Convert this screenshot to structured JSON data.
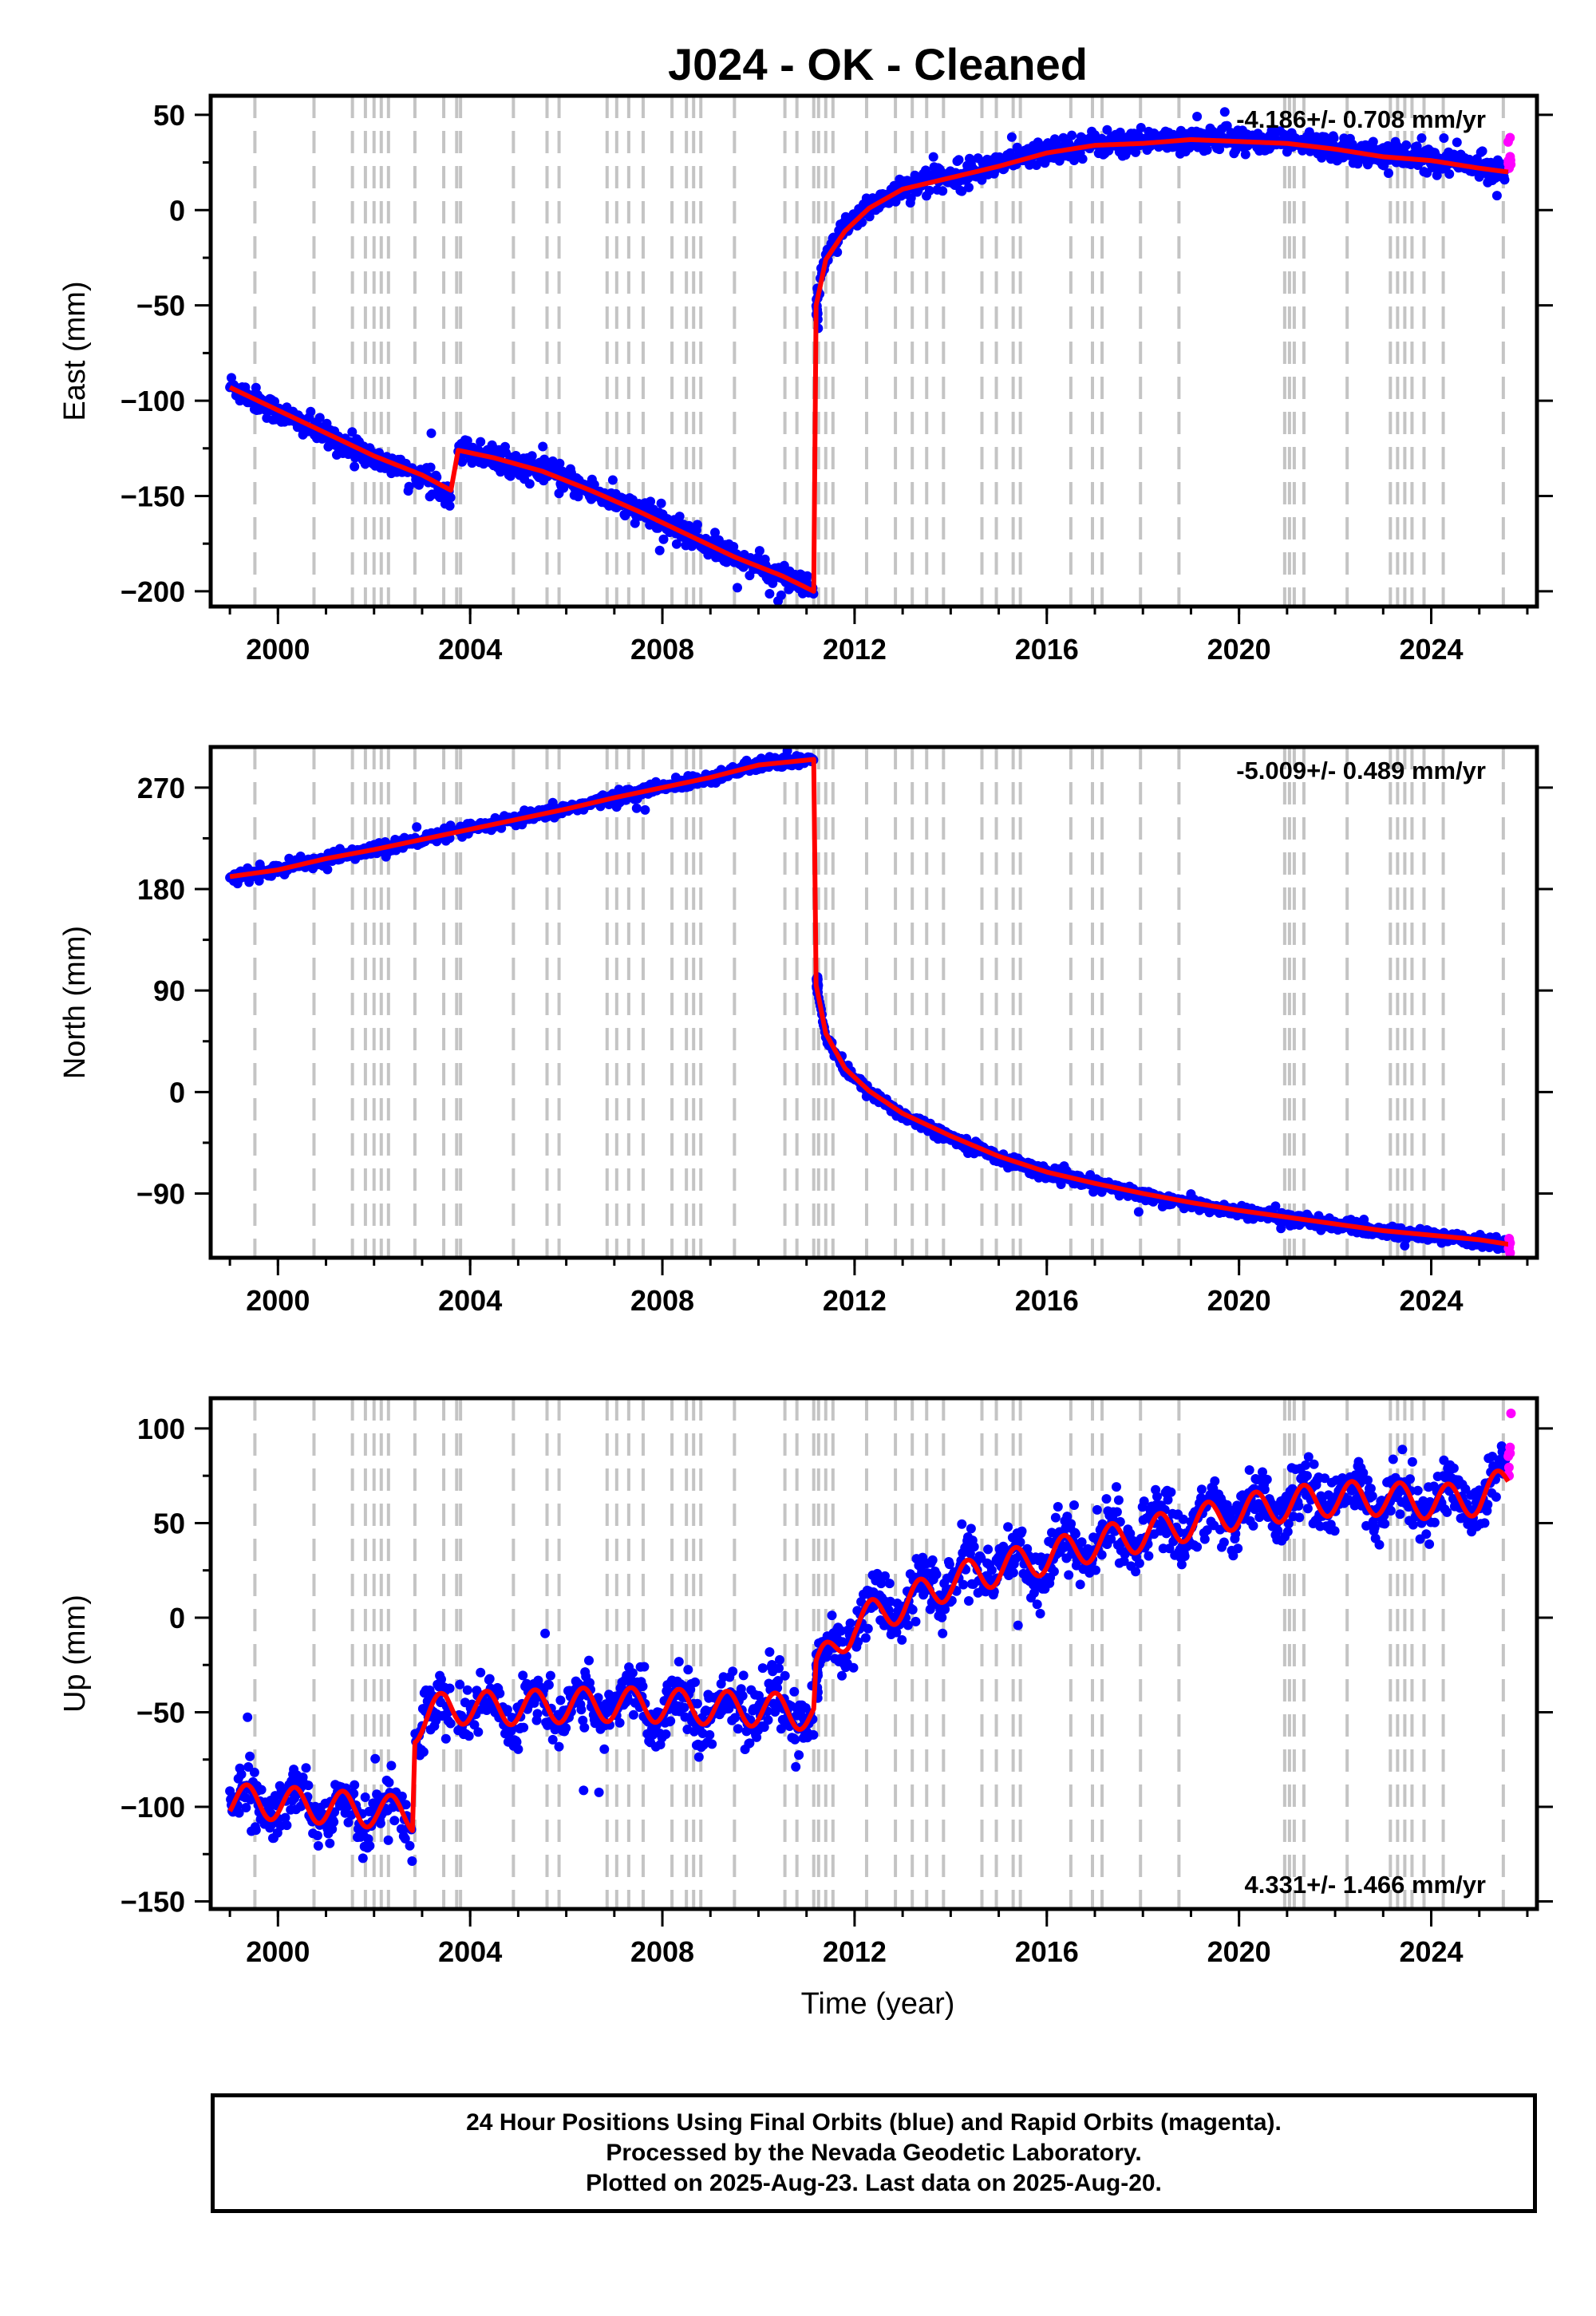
{
  "chart_data": [
    {
      "type": "scatter",
      "title": "J024  - OK - Cleaned",
      "ylabel": "East (mm)",
      "xlabel": "",
      "xlim": [
        1998.6,
        2026.2
      ],
      "ylim": [
        -208,
        60
      ],
      "x_ticks": [
        2000,
        2004,
        2008,
        2012,
        2016,
        2020,
        2024
      ],
      "x_tick_labels": [
        "2000",
        "2004",
        "2008",
        "2012",
        "2016",
        "2020",
        "2024"
      ],
      "y_ticks": [
        50,
        0,
        -50,
        -100,
        -150,
        -200
      ],
      "y_tick_labels": [
        "50",
        "0",
        "−50",
        "−100",
        "−150",
        "−200"
      ],
      "rate_label": "-4.186+/- 0.708 mm/yr",
      "rate_label_position": "top-right",
      "series": [
        {
          "role": "final_orbits",
          "color": "#0000ff",
          "x": [
            1999.0,
            2000.0,
            2001.0,
            2002.0,
            2003.0,
            2003.6,
            2003.75,
            2004.5,
            2005.5,
            2006.5,
            2007.5,
            2008.5,
            2009.5,
            2010.5,
            2011.15,
            2011.2,
            2011.4,
            2011.8,
            2012.3,
            2013.0,
            2014.0,
            2015.0,
            2016.0,
            2017.0,
            2018.0,
            2019.0,
            2020.0,
            2021.0,
            2022.0,
            2023.0,
            2024.0,
            2025.0,
            2025.55
          ],
          "y": [
            -92,
            -106,
            -118,
            -130,
            -140,
            -148,
            -125,
            -130,
            -137,
            -147,
            -158,
            -170,
            -182,
            -192,
            -200,
            -50,
            -25,
            -10,
            2,
            12,
            18,
            24,
            31,
            35,
            36,
            38,
            37,
            36,
            33,
            29,
            27,
            23,
            20
          ]
        },
        {
          "role": "rapid_orbits",
          "color": "#ff00ff",
          "x": [
            2025.62,
            2025.64
          ],
          "y": [
            22,
            38
          ]
        },
        {
          "role": "model_fit",
          "color": "#ff0000",
          "x": [
            1999.0,
            2000.0,
            2001.0,
            2002.0,
            2003.0,
            2003.6,
            2003.75,
            2004.5,
            2005.5,
            2006.5,
            2007.5,
            2008.5,
            2009.5,
            2010.5,
            2011.15,
            2011.2,
            2011.4,
            2011.8,
            2012.3,
            2013.0,
            2014.0,
            2015.0,
            2016.0,
            2017.0,
            2018.0,
            2019.0,
            2020.0,
            2021.0,
            2022.0,
            2023.0,
            2024.0,
            2025.0,
            2025.6
          ],
          "y": [
            -93,
            -105,
            -117,
            -129,
            -139,
            -147,
            -126,
            -130,
            -137,
            -147,
            -158,
            -170,
            -182,
            -192,
            -200,
            -50,
            -26,
            -11,
            1,
            11,
            17,
            23,
            30,
            34,
            35,
            37,
            36,
            35,
            32,
            28,
            26,
            22,
            20
          ]
        }
      ]
    },
    {
      "type": "scatter",
      "title": "",
      "ylabel": "North (mm)",
      "xlabel": "",
      "xlim": [
        1998.6,
        2026.2
      ],
      "ylim": [
        -147,
        306
      ],
      "x_ticks": [
        2000,
        2004,
        2008,
        2012,
        2016,
        2020,
        2024
      ],
      "x_tick_labels": [
        "2000",
        "2004",
        "2008",
        "2012",
        "2016",
        "2020",
        "2024"
      ],
      "y_ticks": [
        270,
        180,
        90,
        0,
        -90
      ],
      "y_tick_labels": [
        "270",
        "180",
        "90",
        "0",
        "−90"
      ],
      "rate_label": "-5.009+/- 0.489 mm/yr",
      "rate_label_position": "top-right",
      "series": [
        {
          "role": "final_orbits",
          "color": "#0000ff",
          "x": [
            1999.0,
            2000.0,
            2001.0,
            2002.0,
            2003.0,
            2004.0,
            2005.0,
            2006.0,
            2007.0,
            2008.0,
            2009.0,
            2010.0,
            2011.15,
            2011.2,
            2011.4,
            2011.8,
            2012.3,
            2013.0,
            2014.0,
            2015.0,
            2016.0,
            2017.0,
            2018.0,
            2019.0,
            2020.0,
            2021.0,
            2022.0,
            2023.0,
            2024.0,
            2025.0,
            2025.55
          ],
          "y": [
            190,
            197,
            207,
            215,
            224,
            233,
            242,
            251,
            261,
            270,
            279,
            290,
            296,
            95,
            50,
            20,
            0,
            -20,
            -40,
            -58,
            -72,
            -82,
            -91,
            -99,
            -106,
            -112,
            -118,
            -124,
            -128,
            -132,
            -136
          ]
        },
        {
          "role": "rapid_orbits",
          "color": "#ff00ff",
          "x": [
            2025.62,
            2025.64
          ],
          "y": [
            -130,
            -143
          ]
        },
        {
          "role": "model_fit",
          "color": "#ff0000",
          "x": [
            1999.0,
            2000.0,
            2001.0,
            2002.0,
            2003.0,
            2004.0,
            2005.0,
            2006.0,
            2007.0,
            2008.0,
            2009.0,
            2010.0,
            2011.15,
            2011.2,
            2011.4,
            2011.8,
            2012.3,
            2013.0,
            2014.0,
            2015.0,
            2016.0,
            2017.0,
            2018.0,
            2019.0,
            2020.0,
            2021.0,
            2022.0,
            2023.0,
            2024.0,
            2025.0,
            2025.6
          ],
          "y": [
            191,
            197,
            207,
            215,
            224,
            233,
            242,
            251,
            261,
            270,
            279,
            290,
            295,
            95,
            52,
            21,
            1,
            -19,
            -39,
            -57,
            -71,
            -81,
            -90,
            -98,
            -105,
            -111,
            -117,
            -123,
            -127,
            -131,
            -135
          ]
        }
      ]
    },
    {
      "type": "scatter",
      "title": "",
      "ylabel": "Up (mm)",
      "xlabel": "Time (year)",
      "xlim": [
        1998.6,
        2026.2
      ],
      "ylim": [
        -154,
        116
      ],
      "x_ticks": [
        2000,
        2004,
        2008,
        2012,
        2016,
        2020,
        2024
      ],
      "x_tick_labels": [
        "2000",
        "2004",
        "2008",
        "2012",
        "2016",
        "2020",
        "2024"
      ],
      "y_ticks": [
        100,
        50,
        0,
        -50,
        -100,
        -150
      ],
      "y_tick_labels": [
        "100",
        "50",
        "0",
        "−50",
        "−100",
        "−150"
      ],
      "rate_label": "4.331+/- 1.466 mm/yr",
      "rate_label_position": "bottom-right",
      "series": [
        {
          "role": "final_orbits",
          "color": "#0000ff",
          "x": [
            1999.0,
            2000.0,
            2001.0,
            2002.0,
            2002.8,
            2002.85,
            2003.5,
            2004.5,
            2005.5,
            2006.5,
            2007.5,
            2008.5,
            2009.5,
            2010.5,
            2011.15,
            2011.2,
            2012.0,
            2013.0,
            2014.0,
            2015.0,
            2016.0,
            2017.0,
            2018.0,
            2019.0,
            2020.0,
            2021.0,
            2022.0,
            2023.0,
            2024.0,
            2025.0,
            2025.55
          ],
          "y": [
            -97,
            -98,
            -100,
            -102,
            -104,
            -57,
            -48,
            -48,
            -47,
            -46,
            -46,
            -47,
            -48,
            -49,
            -51,
            -28,
            -2,
            8,
            20,
            27,
            33,
            40,
            45,
            51,
            57,
            61,
            64,
            64,
            62,
            64,
            70
          ]
        },
        {
          "role": "rapid_orbits",
          "color": "#ff00ff",
          "x": [
            2025.62,
            2025.64,
            2025.66
          ],
          "y": [
            75,
            90,
            108
          ]
        },
        {
          "role": "model_fit",
          "color": "#ff0000",
          "x": [
            1999.0,
            2000.0,
            2001.0,
            2002.0,
            2002.8,
            2002.85,
            2003.5,
            2004.5,
            2005.5,
            2006.5,
            2007.5,
            2008.5,
            2009.5,
            2010.5,
            2011.15,
            2011.2,
            2012.0,
            2013.0,
            2014.0,
            2015.0,
            2016.0,
            2017.0,
            2018.0,
            2019.0,
            2020.0,
            2021.0,
            2022.0,
            2023.0,
            2024.0,
            2025.0,
            2025.6
          ],
          "y": [
            -97,
            -98,
            -100,
            -102,
            -104,
            -57,
            -47,
            -48,
            -47,
            -46,
            -46,
            -47,
            -48,
            -49,
            -51,
            -28,
            -3,
            7,
            19,
            26,
            32,
            39,
            44,
            50,
            56,
            60,
            63,
            63,
            61,
            63,
            72
          ]
        }
      ]
    }
  ],
  "discontinuity_epochs": [
    1999.52,
    2000.75,
    2001.55,
    2001.82,
    2002.0,
    2002.15,
    2002.3,
    2002.85,
    2003.45,
    2003.72,
    2003.8,
    2004.9,
    2005.6,
    2005.85,
    2006.85,
    2007.05,
    2007.3,
    2007.6,
    2008.2,
    2008.5,
    2008.65,
    2008.8,
    2009.5,
    2010.55,
    2010.8,
    2011.15,
    2011.25,
    2011.4,
    2011.55,
    2012.25,
    2012.85,
    2013.2,
    2013.5,
    2013.85,
    2014.65,
    2014.95,
    2015.3,
    2015.45,
    2016.5,
    2016.95,
    2017.15,
    2017.95,
    2018.75,
    2020.95,
    2021.05,
    2021.15,
    2021.35,
    2022.25,
    2023.15,
    2023.3,
    2023.45,
    2023.6,
    2023.85,
    2024.25,
    2025.5
  ],
  "footer": {
    "lines": [
      "24 Hour Positions Using Final Orbits (blue) and Rapid Orbits (magenta).",
      "Processed by the Nevada Geodetic Laboratory.",
      "Plotted on 2025-Aug-23. Last data on 2025-Aug-20."
    ]
  }
}
